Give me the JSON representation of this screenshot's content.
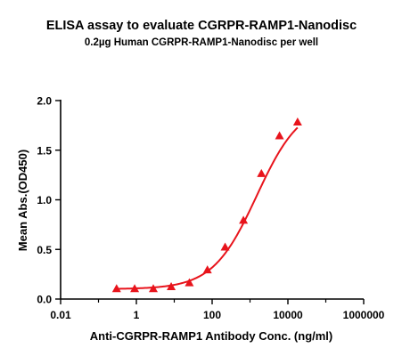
{
  "chart_data": {
    "type": "scatter",
    "title": "ELISA assay to evaluate CGRPR-RAMP1-Nanodisc",
    "subtitle": "0.2µg Human CGRPR-RAMP1-Nanodisc per well",
    "xlabel": "Anti-CGRPR-RAMP1 Antibody Conc. (ng/ml)",
    "ylabel": "Mean Abs.(OD450)",
    "x_scale": "log",
    "xlim": [
      0.01,
      1000000
    ],
    "ylim": [
      0,
      2.0
    ],
    "x_ticks": [
      0.01,
      1,
      100,
      10000,
      1000000
    ],
    "x_tick_labels": [
      "0.01",
      "1",
      "100",
      "10000",
      "1000000"
    ],
    "y_ticks": [
      0.0,
      0.5,
      1.0,
      1.5,
      2.0
    ],
    "y_tick_labels": [
      "0.0",
      "0.5",
      "1.0",
      "1.5",
      "2.0"
    ],
    "grid": false,
    "legend": "none",
    "series": [
      {
        "marker": "triangle",
        "color": "#e8141c",
        "fit": "4PL",
        "x": [
          0.3,
          0.9,
          2.8,
          8.3,
          25,
          75,
          220,
          670,
          2000,
          6000,
          18000
        ],
        "y": [
          0.1,
          0.1,
          0.1,
          0.12,
          0.16,
          0.29,
          0.52,
          0.79,
          1.26,
          1.64,
          1.78
        ]
      }
    ],
    "fit_curve": {
      "bottom": 0.1,
      "top": 1.98,
      "ec50": 1500,
      "hill": 0.75
    }
  }
}
